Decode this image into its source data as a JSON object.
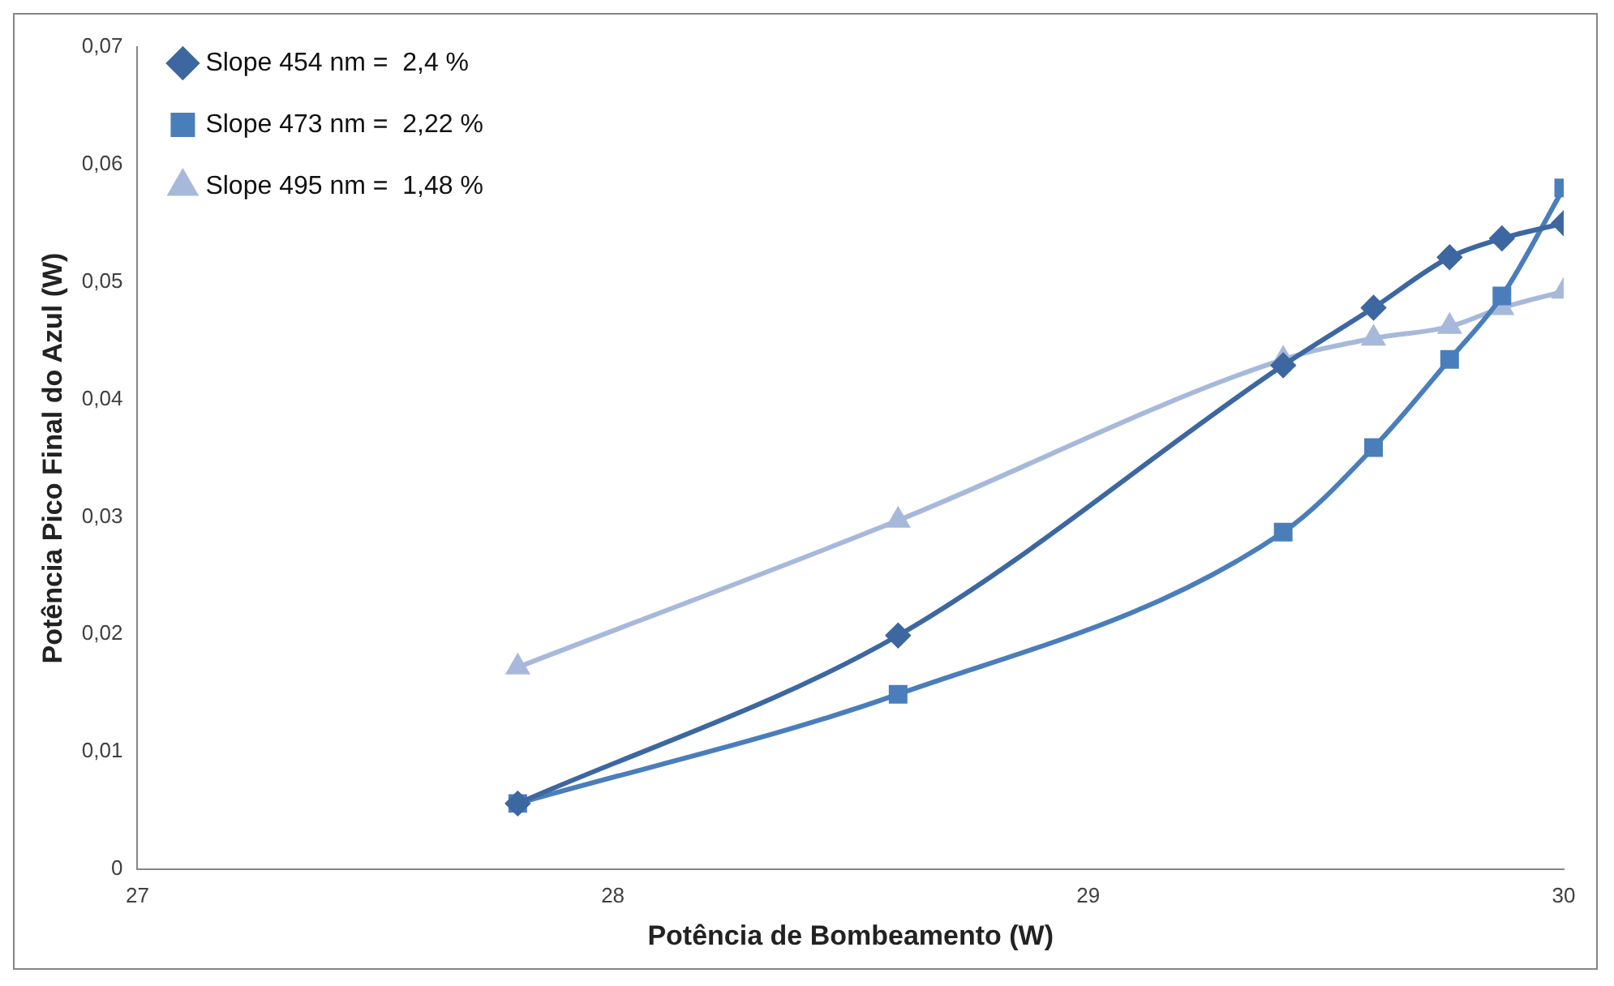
{
  "chart_data": {
    "type": "line",
    "xlabel": "Potência de Bombeamento (W)",
    "ylabel": "Potência Pico Final do Azul (W)",
    "xlim": [
      27,
      30
    ],
    "xticks": [
      27,
      28,
      29,
      30
    ],
    "ylim": [
      0,
      0.07
    ],
    "yticks": [
      0,
      {
        "value": 0.01,
        "label": "0,01"
      },
      {
        "value": 0.02,
        "label": "0,02"
      },
      {
        "value": 0.03,
        "label": "0,03"
      },
      {
        "value": 0.04,
        "label": "0,04"
      },
      {
        "value": 0.05,
        "label": "0,05"
      },
      {
        "value": 0.06,
        "label": "0,06"
      },
      {
        "value": 0.07,
        "label": "0,07"
      }
    ],
    "grid": false,
    "legend": "top left",
    "line_style": "solid",
    "x": [
      27.8,
      28.6,
      29.41,
      29.6,
      29.76,
      29.87,
      30
    ],
    "series": [
      {
        "name": "Slope 454 nm =  2,4 %",
        "color": "#3d67a0",
        "marker": "diamond",
        "values": [
          0.0056,
          0.0199,
          0.0429,
          0.0478,
          0.0521,
          0.0537,
          0.055
        ]
      },
      {
        "name": "Slope 473 nm =  2,22 %",
        "color": "#4a7ebb",
        "marker": "square",
        "values": [
          0.0056,
          0.0149,
          0.0287,
          0.0359,
          0.0434,
          0.0488,
          0.058
        ]
      },
      {
        "name": "Slope 495 nm =  1,48 %",
        "color": "#a7b9da",
        "marker": "triangle",
        "values": [
          0.0172,
          0.0297,
          0.0434,
          0.0452,
          0.0462,
          0.0478,
          0.0492
        ]
      }
    ]
  }
}
